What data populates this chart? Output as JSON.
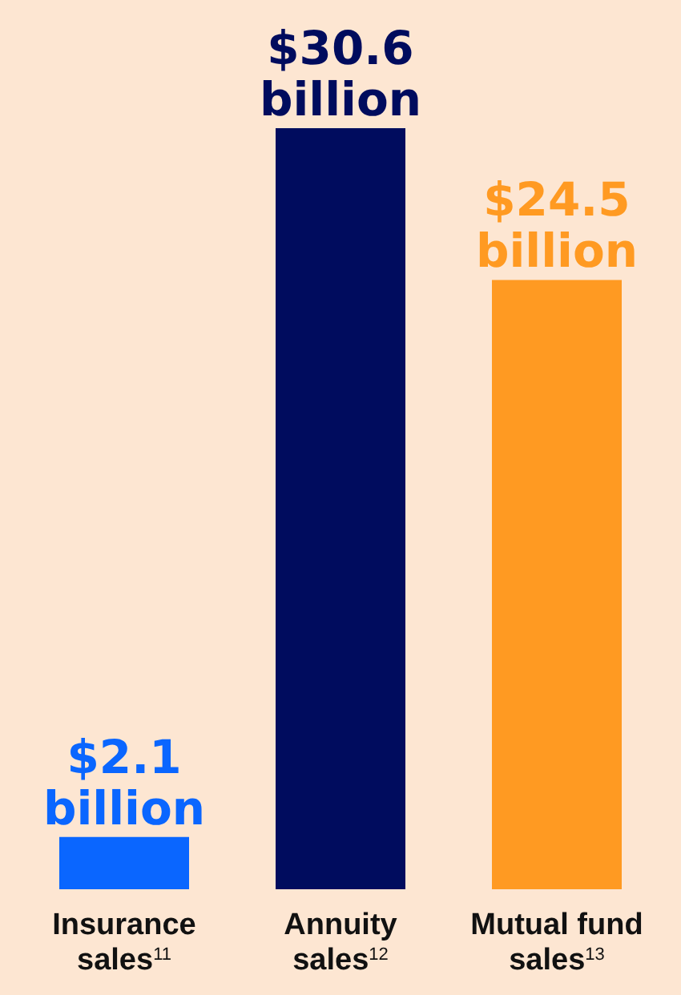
{
  "chart_data": {
    "type": "bar",
    "categories": [
      "Insurance sales$^{11}$",
      "Annuity sales$^{12}$",
      "Mutual fund sales$^{13}$"
    ],
    "values": [
      2.1,
      30.6,
      24.5
    ],
    "colors": [
      "#0a66ff",
      "#000c5e",
      "#ff9a22"
    ],
    "value_labels": [
      "$2.1 billion",
      "$30.6 billion",
      "$24.5 billion"
    ]
  }
}
